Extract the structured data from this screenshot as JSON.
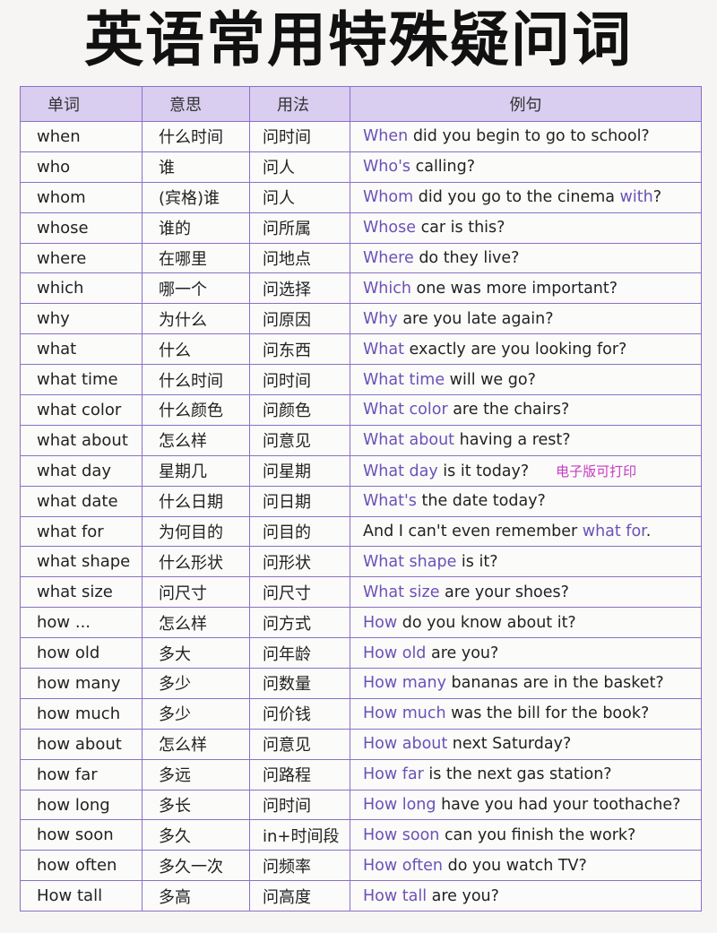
{
  "title": "英语常用特殊疑问词",
  "header": [
    "单词",
    "意思",
    "用法",
    "例句"
  ],
  "rows": [
    {
      "word": "when",
      "meaning": "什么时间",
      "usage": "问时间",
      "example": [
        {
          "text": "When",
          "hl": true
        },
        {
          "text": " did you begin to go to school?",
          "hl": false
        }
      ]
    },
    {
      "word": "who",
      "meaning": "谁",
      "usage": "问人",
      "example": [
        {
          "text": "Who's",
          "hl": true
        },
        {
          "text": " calling?",
          "hl": false
        }
      ]
    },
    {
      "word": "whom",
      "meaning": "(宾格)谁",
      "usage": "问人",
      "example": [
        {
          "text": "Whom",
          "hl": true
        },
        {
          "text": " did you go to the cinema ",
          "hl": false
        },
        {
          "text": "with",
          "hl": true
        },
        {
          "text": "?",
          "hl": false
        }
      ]
    },
    {
      "word": "whose",
      "meaning": "谁的",
      "usage": "问所属",
      "example": [
        {
          "text": "Whose",
          "hl": true
        },
        {
          "text": " car is this?",
          "hl": false
        }
      ]
    },
    {
      "word": "where",
      "meaning": "在哪里",
      "usage": "问地点",
      "example": [
        {
          "text": "Where",
          "hl": true
        },
        {
          "text": " do they live?",
          "hl": false
        }
      ]
    },
    {
      "word": "which",
      "meaning": "哪一个",
      "usage": "问选择",
      "example": [
        {
          "text": "Which",
          "hl": true
        },
        {
          "text": " one was more important?",
          "hl": false
        }
      ]
    },
    {
      "word": "why",
      "meaning": "为什么",
      "usage": "问原因",
      "example": [
        {
          "text": "Why",
          "hl": true
        },
        {
          "text": " are you late again?",
          "hl": false
        }
      ]
    },
    {
      "word": "what",
      "meaning": "什么",
      "usage": "问东西",
      "example": [
        {
          "text": "What",
          "hl": true
        },
        {
          "text": " exactly are you looking for?",
          "hl": false
        }
      ]
    },
    {
      "word": "what time",
      "meaning": "什么时间",
      "usage": "问时间",
      "example": [
        {
          "text": "What time",
          "hl": true
        },
        {
          "text": " will we go?",
          "hl": false
        }
      ]
    },
    {
      "word": "what color",
      "meaning": "什么颜色",
      "usage": "问颜色",
      "example": [
        {
          "text": "What color",
          "hl": true
        },
        {
          "text": " are the chairs?",
          "hl": false
        }
      ]
    },
    {
      "word": "what about",
      "meaning": "怎么样",
      "usage": "问意见",
      "example": [
        {
          "text": "What about",
          "hl": true
        },
        {
          "text": " having a rest?",
          "hl": false
        }
      ]
    },
    {
      "word": "what day",
      "meaning": "星期几",
      "usage": "问星期",
      "example": [
        {
          "text": "What day",
          "hl": true
        },
        {
          "text": " is it today?",
          "hl": false
        }
      ],
      "note": "电子版可打印"
    },
    {
      "word": "what date",
      "meaning": "什么日期",
      "usage": "问日期",
      "example": [
        {
          "text": "What's",
          "hl": true
        },
        {
          "text": " the date today?",
          "hl": false
        }
      ]
    },
    {
      "word": "what for",
      "meaning": "为何目的",
      "usage": "问目的",
      "example": [
        {
          "text": "And I can't even remember ",
          "hl": false
        },
        {
          "text": "what for",
          "hl": true
        },
        {
          "text": ".",
          "hl": false
        }
      ]
    },
    {
      "word": "what shape",
      "meaning": "什么形状",
      "usage": "问形状",
      "example": [
        {
          "text": "What shape",
          "hl": true
        },
        {
          "text": " is it?",
          "hl": false
        }
      ]
    },
    {
      "word": "what size",
      "meaning": "问尺寸",
      "usage": "问尺寸",
      "example": [
        {
          "text": "What size",
          "hl": true
        },
        {
          "text": " are your shoes?",
          "hl": false
        }
      ]
    },
    {
      "word": "how ...",
      "meaning": "怎么样",
      "usage": "问方式",
      "example": [
        {
          "text": "How",
          "hl": true
        },
        {
          "text": " do you know about it?",
          "hl": false
        }
      ]
    },
    {
      "word": "how old",
      "meaning": "多大",
      "usage": "问年龄",
      "example": [
        {
          "text": "How old",
          "hl": true
        },
        {
          "text": " are you?",
          "hl": false
        }
      ]
    },
    {
      "word": "how many",
      "meaning": "多少",
      "usage": "问数量",
      "example": [
        {
          "text": "How many",
          "hl": true
        },
        {
          "text": " bananas are in the basket?",
          "hl": false
        }
      ]
    },
    {
      "word": "how much",
      "meaning": "多少",
      "usage": "问价钱",
      "example": [
        {
          "text": "How much",
          "hl": true
        },
        {
          "text": " was the bill for the book?",
          "hl": false
        }
      ]
    },
    {
      "word": "how about",
      "meaning": "怎么样",
      "usage": "问意见",
      "example": [
        {
          "text": "How about",
          "hl": true
        },
        {
          "text": " next Saturday?",
          "hl": false
        }
      ]
    },
    {
      "word": "how far",
      "meaning": "多远",
      "usage": "问路程",
      "example": [
        {
          "text": "How far",
          "hl": true
        },
        {
          "text": " is the next gas station?",
          "hl": false
        }
      ]
    },
    {
      "word": "how long",
      "meaning": "多长",
      "usage": "问时间",
      "example": [
        {
          "text": "How long",
          "hl": true
        },
        {
          "text": " have you had your toothache?",
          "hl": false
        }
      ]
    },
    {
      "word": "how soon",
      "meaning": "多久",
      "usage": "in+时间段",
      "example": [
        {
          "text": "How soon",
          "hl": true
        },
        {
          "text": " can you finish the work?",
          "hl": false
        }
      ]
    },
    {
      "word": "how often",
      "meaning": "多久一次",
      "usage": "问频率",
      "example": [
        {
          "text": "How often",
          "hl": true
        },
        {
          "text": " do you watch TV?",
          "hl": false
        }
      ]
    },
    {
      "word": "How tall",
      "meaning": "多高",
      "usage": "问高度",
      "example": [
        {
          "text": "How tall",
          "hl": true
        },
        {
          "text": " are you?",
          "hl": false
        }
      ]
    }
  ]
}
